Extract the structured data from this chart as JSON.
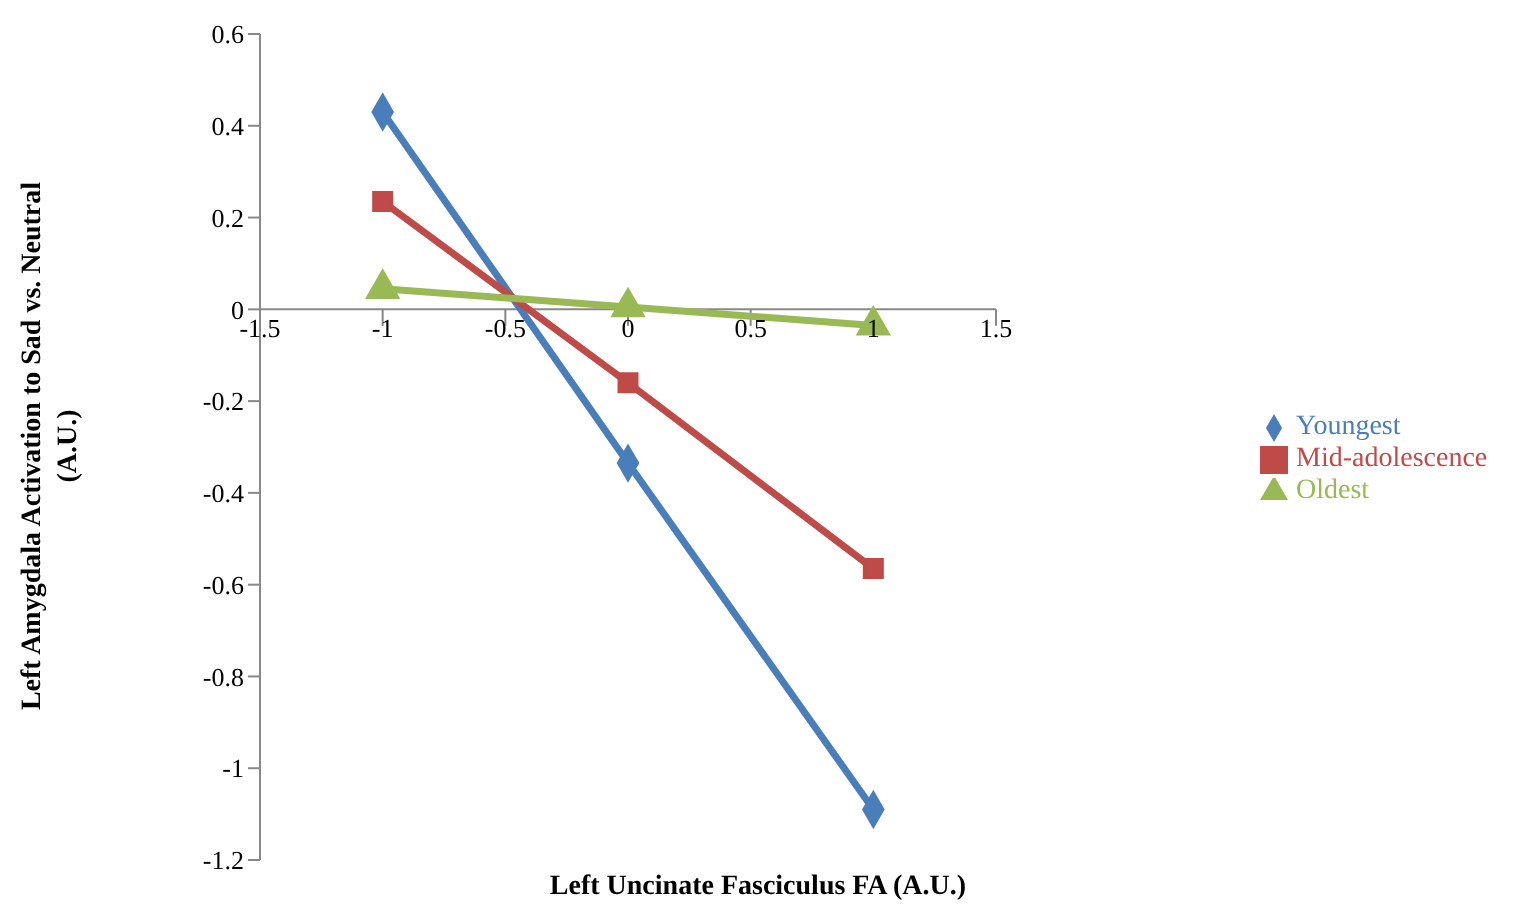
{
  "chart_data": {
    "type": "line",
    "xlabel": "Left Uncinate Fasciculus FA (A.U.)",
    "ylabel": "Left Amygdala Activation to Sad vs. Neutral (A.U.)",
    "x": [
      -1,
      0,
      1
    ],
    "series": [
      {
        "name": "Youngest",
        "color": "#4a7ebb",
        "marker": "diamond",
        "values": [
          0.43,
          -0.335,
          -1.09
        ]
      },
      {
        "name": "Mid-adolescence",
        "color": "#be4b48",
        "marker": "square",
        "values": [
          0.235,
          -0.16,
          -0.565
        ]
      },
      {
        "name": "Oldest",
        "color": "#98b954",
        "marker": "triangle",
        "values": [
          0.045,
          0.005,
          -0.035
        ]
      }
    ],
    "xlim": [
      -1.5,
      1.5
    ],
    "xticks": [
      -1.5,
      -1,
      -0.5,
      0,
      0.5,
      1,
      1.5
    ],
    "ylim": [
      -1.2,
      0.6
    ],
    "yticks": [
      -1.2,
      -1,
      -0.8,
      -0.6,
      -0.4,
      -0.2,
      0,
      0.2,
      0.4,
      0.6
    ],
    "grid": false,
    "legend": "right",
    "line_style": "solid"
  }
}
